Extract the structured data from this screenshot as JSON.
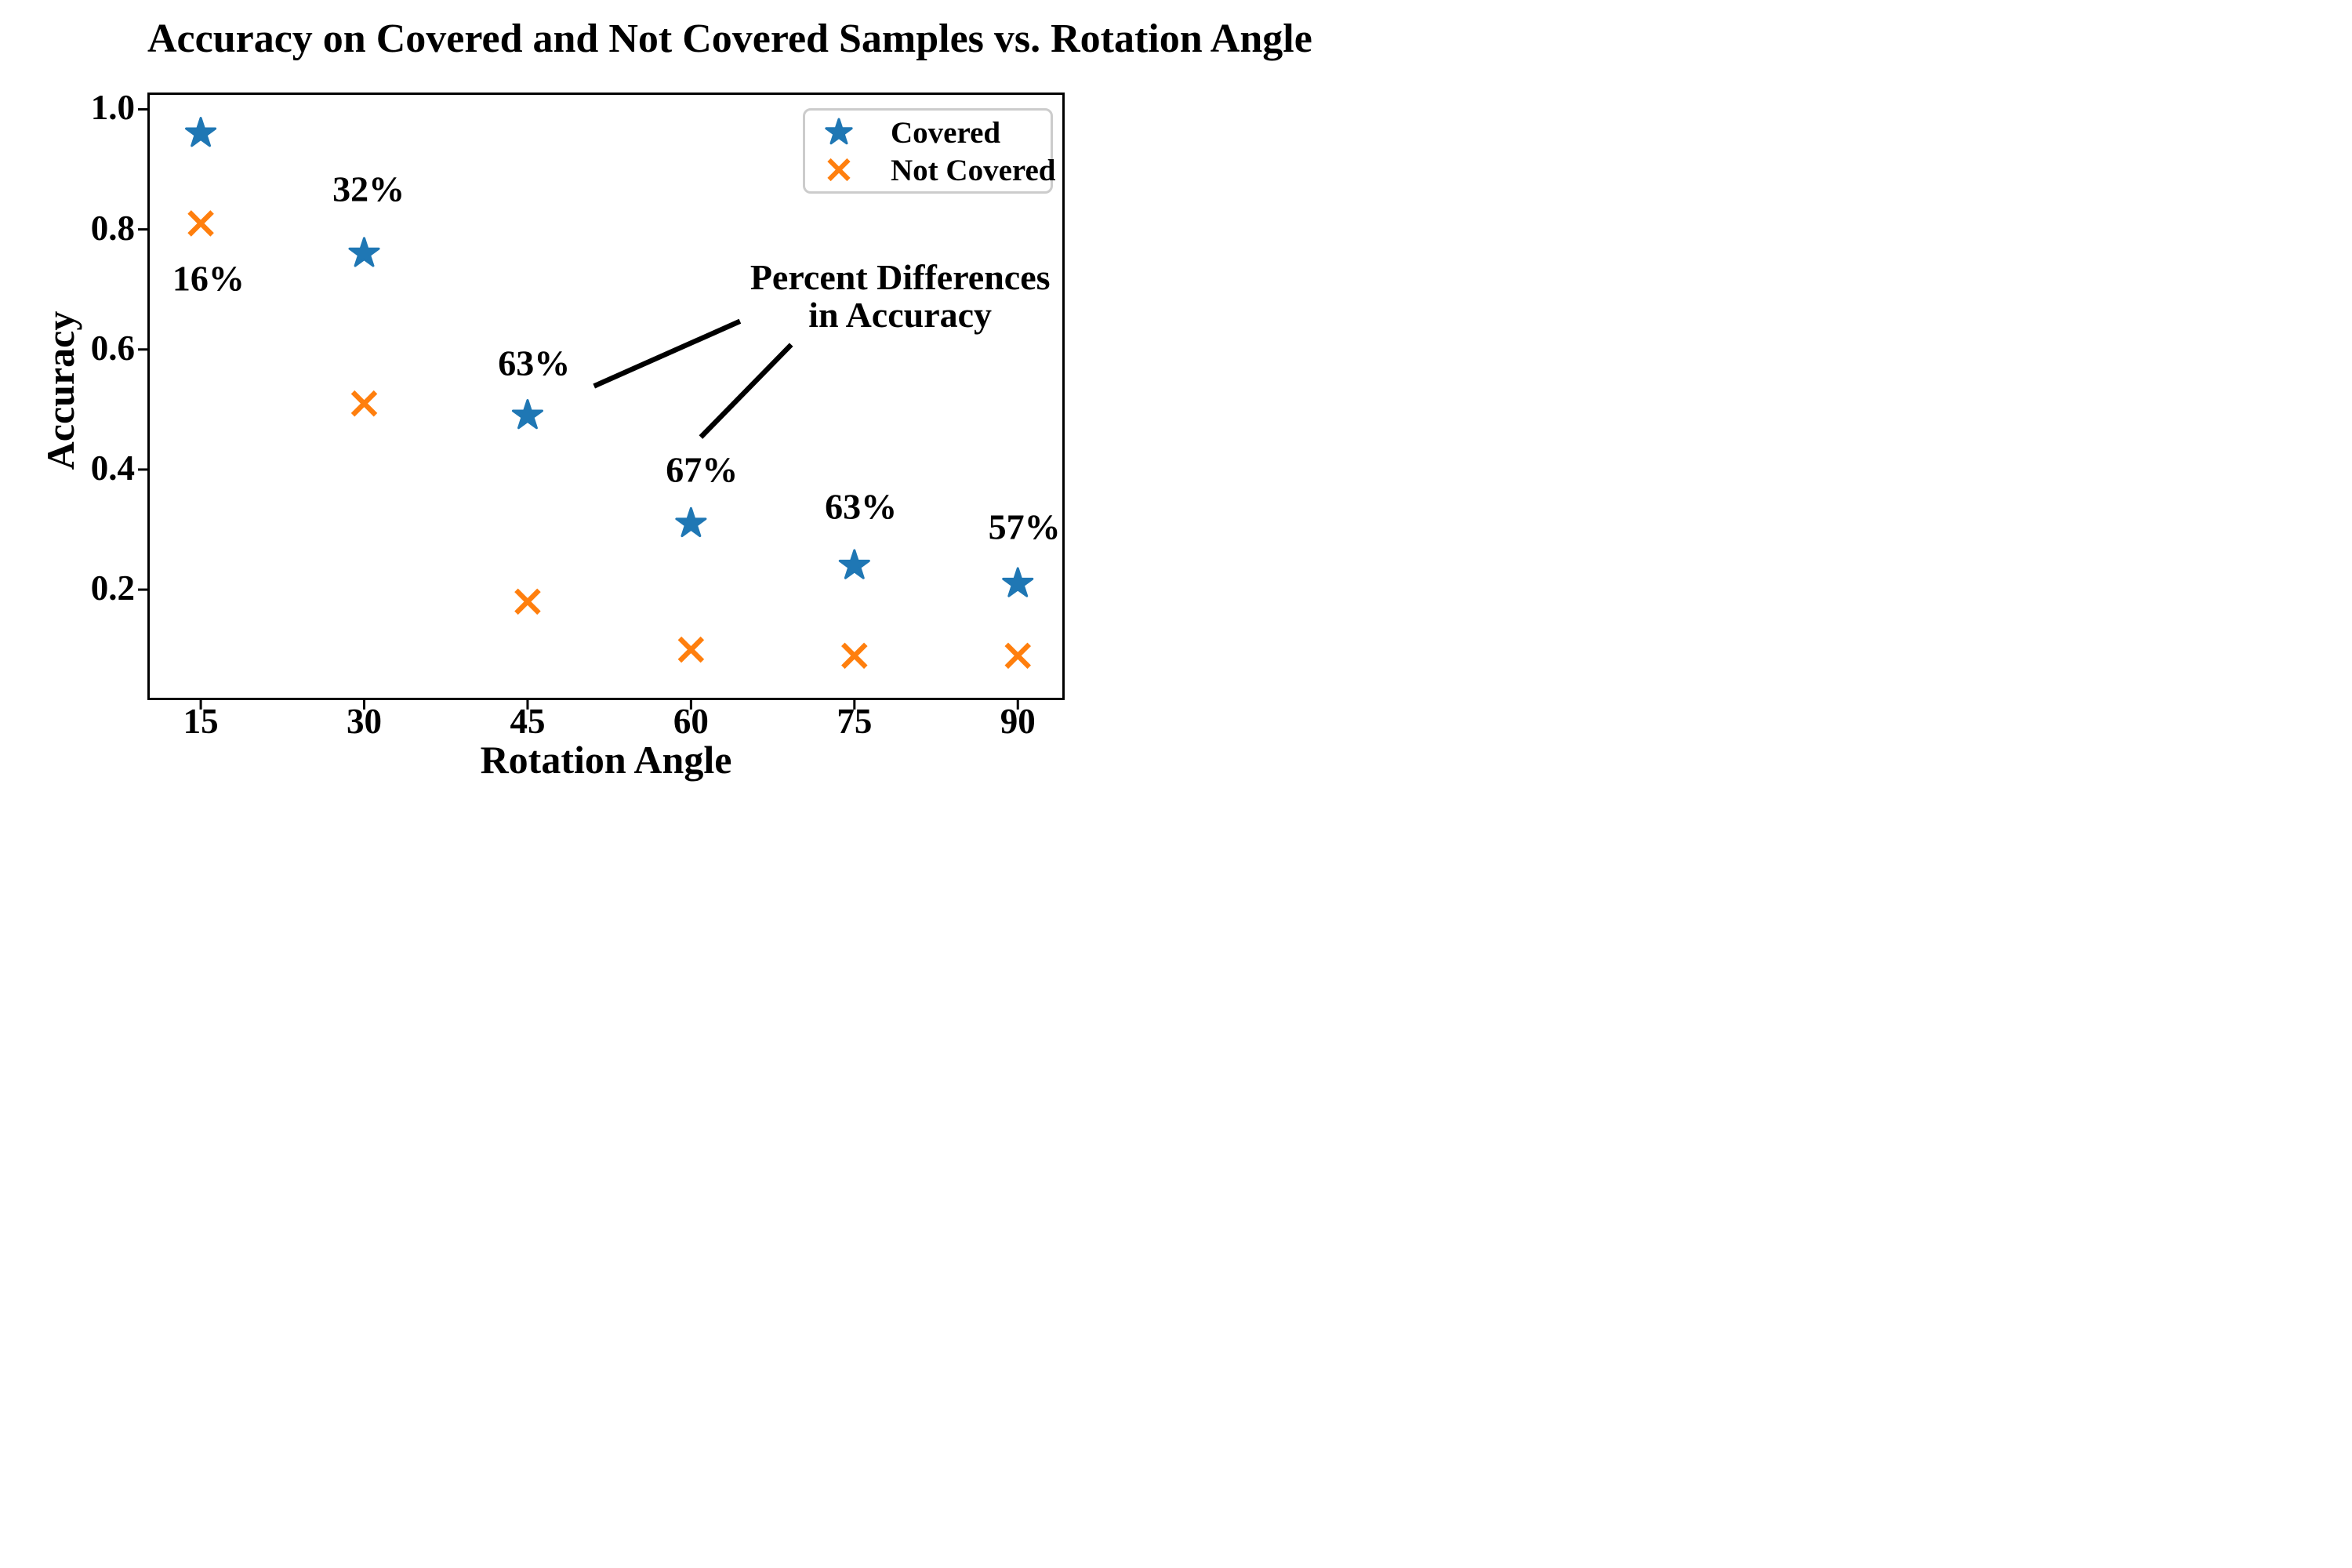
{
  "figure": {
    "title": "Accuracy on Covered and Not Covered Samples vs. Rotation Angle",
    "xlabel": "Rotation Angle",
    "ylabel": "Accuracy",
    "background_color": "#ffffff",
    "text_color": "#000000"
  },
  "legend": {
    "position": "upper right",
    "border_color": "#cccccc",
    "items": [
      {
        "label": "Covered",
        "marker": "star-icon",
        "color": "#1f77b4"
      },
      {
        "label": "Not Covered",
        "marker": "x-icon",
        "color": "#ff7f0e"
      }
    ]
  },
  "chart_data": {
    "type": "scatter",
    "title": "Accuracy on Covered and Not Covered Samples vs. Rotation Angle",
    "xlabel": "Rotation Angle",
    "ylabel": "Accuracy",
    "x": [
      15,
      30,
      45,
      60,
      75,
      90
    ],
    "x_ticks": [
      15,
      30,
      45,
      60,
      75,
      90
    ],
    "y_ticks": [
      1.0,
      0.8,
      0.6,
      0.4,
      0.2
    ],
    "y_tick_labels": [
      "1.0",
      "0.8",
      "0.6",
      "0.4",
      "0.2"
    ],
    "xlim": [
      10.1,
      94.3
    ],
    "ylim": [
      0.016,
      1.028
    ],
    "grid": false,
    "legend_position": "upper right",
    "series": [
      {
        "name": "Covered",
        "marker": "star",
        "color": "#1f77b4",
        "values": [
          0.96,
          0.76,
          0.49,
          0.31,
          0.24,
          0.21
        ]
      },
      {
        "name": "Not Covered",
        "marker": "x",
        "color": "#ff7f0e",
        "values": [
          0.81,
          0.51,
          0.18,
          0.1,
          0.09,
          0.09
        ]
      }
    ],
    "percent_diff_labels": [
      {
        "text": "16%",
        "x": 15.7,
        "y": 0.718
      },
      {
        "text": "32%",
        "x": 30.4,
        "y": 0.868
      },
      {
        "text": "63%",
        "x": 45.6,
        "y": 0.578
      },
      {
        "text": "67%",
        "x": 61.0,
        "y": 0.4
      },
      {
        "text": "63%",
        "x": 75.6,
        "y": 0.338
      },
      {
        "text": "57%",
        "x": 90.6,
        "y": 0.305
      }
    ],
    "annotation": {
      "text_lines": [
        "Percent Differences",
        "in Accuracy"
      ],
      "x": 79.2,
      "y": 0.688,
      "pointer_lines": [
        {
          "x1": 51.1,
          "y1": 0.539,
          "x2": 64.5,
          "y2": 0.647
        },
        {
          "x1": 60.9,
          "y1": 0.454,
          "x2": 69.2,
          "y2": 0.608
        }
      ]
    }
  }
}
